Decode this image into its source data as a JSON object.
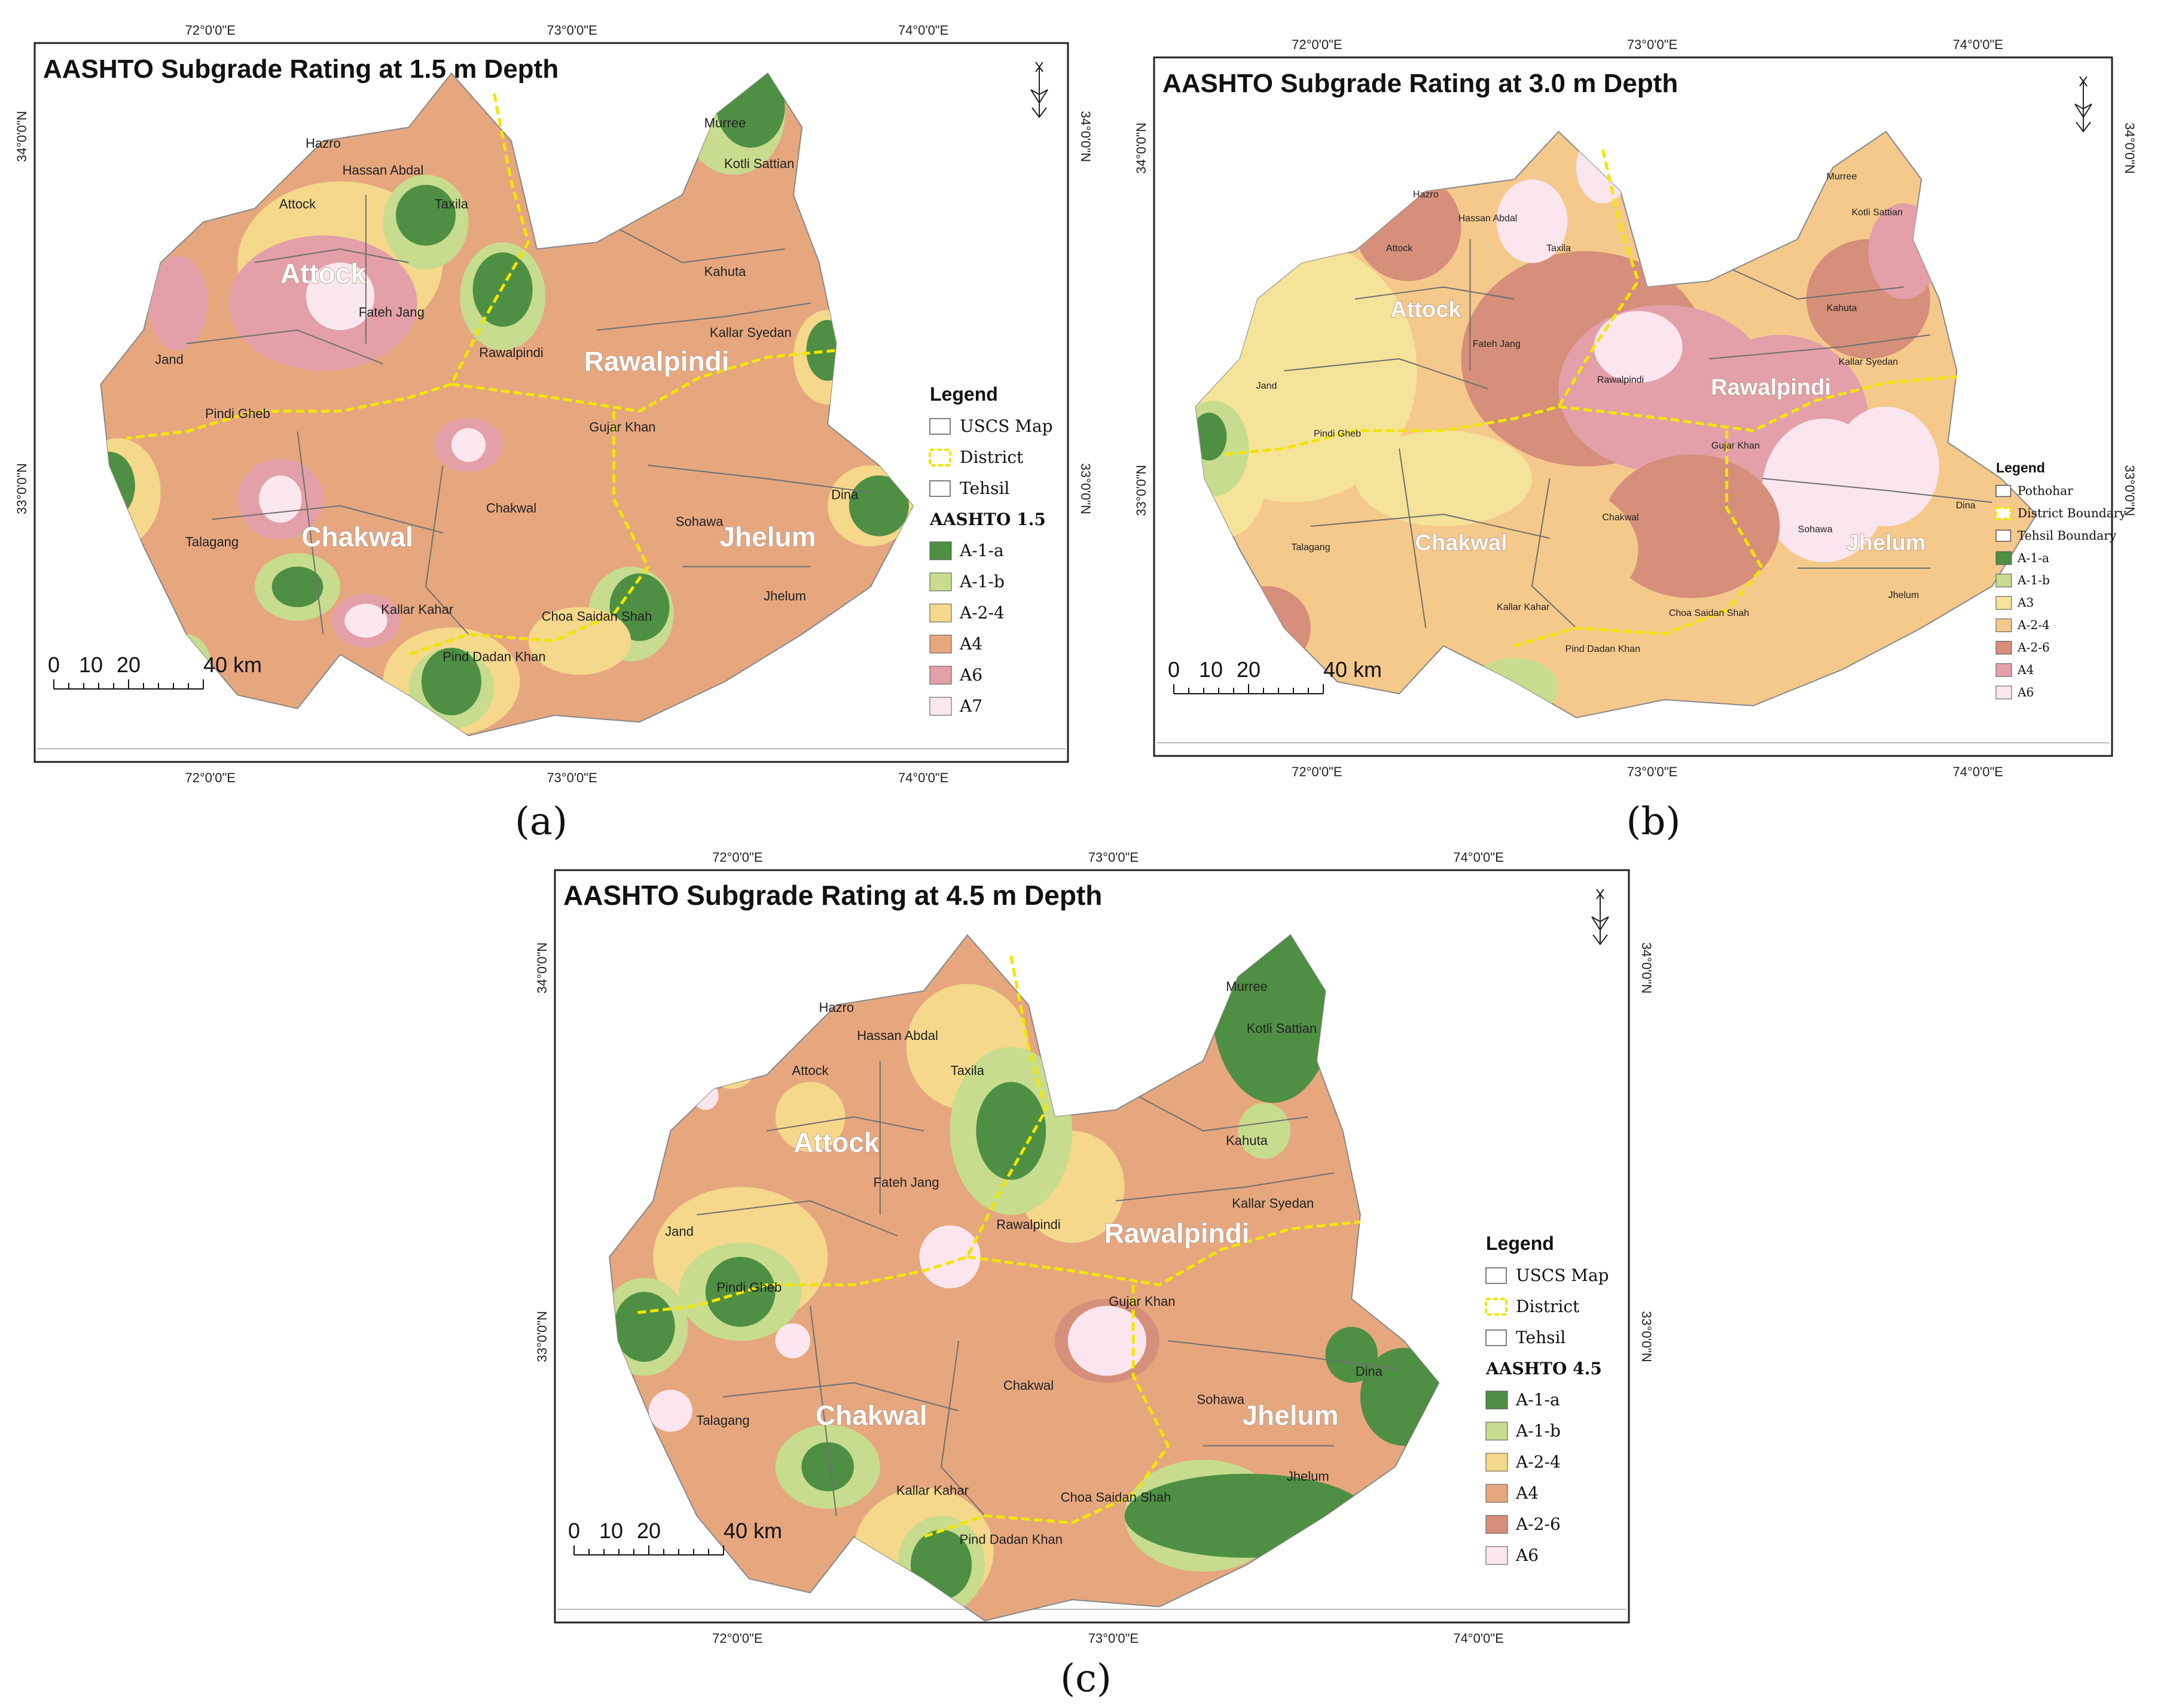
{
  "colors": {
    "A-1-a": "#4e8f43",
    "A-1-b": "#c7dc8e",
    "A-2-4": "#f5d88b",
    "A4": "#e6a77f",
    "A-2-6": "#d58f7a",
    "A6": "#e3a0a8",
    "A7": "#fbe8ef",
    "A6-light": "#fbe5ee"
  },
  "panels": [
    {
      "id": "a",
      "title": "AASHTO Subgrade Rating at 1.5 m Depth",
      "label": "(a)",
      "coords_top": [
        "72°0'0\"E",
        "73°0'0\"E",
        "74°0'0\"E"
      ],
      "coords_bottom": [
        "72°0'0\"E",
        "73°0'0\"E",
        "74°0'0\"E"
      ],
      "coords_left": [
        "34°0'0\"N",
        "33°0'0\"N"
      ],
      "coords_right": [
        "34°0'0\"N",
        "33°0'0\"N"
      ],
      "districts": [
        "Attock",
        "Rawalpindi",
        "Chakwal",
        "Jhelum"
      ],
      "tehsils": [
        "Hazro",
        "Hassan Abdal",
        "Taxila",
        "Murree",
        "Kotli Sattian",
        "Attock",
        "Kahuta",
        "Fateh Jang",
        "Jand",
        "Kallar Syedan",
        "Rawalpindi",
        "Pindi Gheb",
        "Gujar Khan",
        "Dina",
        "Chakwal",
        "Sohawa",
        "Talagang",
        "Jhelum",
        "Kallar Kahar",
        "Choa Saidan Shah",
        "Pind Dadan Khan"
      ],
      "legend": {
        "title": "Legend",
        "lines": [
          "USCS Map",
          "District",
          "Tehsil"
        ],
        "subtitle": "AASHTO 1.5",
        "classes": [
          {
            "label": "A-1-a",
            "color": "#4e8f43"
          },
          {
            "label": "A-1-b",
            "color": "#c7dc8e"
          },
          {
            "label": "A-2-4",
            "color": "#f5d88b"
          },
          {
            "label": "A4",
            "color": "#e6a77f"
          },
          {
            "label": "A6",
            "color": "#e3a0a8"
          },
          {
            "label": "A7",
            "color": "#fbe8ef"
          }
        ]
      },
      "scale": {
        "ticks": [
          "0",
          "10",
          "20",
          "40 km"
        ]
      }
    },
    {
      "id": "b",
      "title": "AASHTO Subgrade Rating at 3.0 m Depth",
      "label": "(b)",
      "coords_top": [
        "72°0'0\"E",
        "73°0'0\"E",
        "74°0'0\"E"
      ],
      "coords_bottom": [
        "72°0'0\"E",
        "73°0'0\"E",
        "74°0'0\"E"
      ],
      "coords_left": [
        "34°0'0\"N",
        "33°0'0\"N"
      ],
      "coords_right": [
        "34°0'0\"N",
        "33°0'0\"N"
      ],
      "districts": [
        "Attock",
        "Rawalpindi",
        "Chakwal",
        "Jhelum"
      ],
      "tehsils": [
        "Hazro",
        "Hassan Abdal",
        "Taxila",
        "Murree",
        "Kotli Sattian",
        "Attock",
        "Kahuta",
        "Fateh Jang",
        "Jand",
        "Kallar Syedan",
        "Rawalpindi",
        "Pindi Gheb",
        "Gujar Khan",
        "Dina",
        "Chakwal",
        "Sohawa",
        "Talagang",
        "Jhelum",
        "Kallar Kahar",
        "Choa Saidan Shah",
        "Pind Dadan Khan"
      ],
      "legend": {
        "title": "Legend",
        "lines": [
          "Pothohar",
          "District Boundary",
          "Tehsil Boundary"
        ],
        "subtitle": "",
        "classes": [
          {
            "label": "A-1-a",
            "color": "#4e8f43"
          },
          {
            "label": "A-1-b",
            "color": "#c7dc8e"
          },
          {
            "label": "A3",
            "color": "#f5e39a"
          },
          {
            "label": "A-2-4",
            "color": "#f5c98b"
          },
          {
            "label": "A-2-6",
            "color": "#d58f7a"
          },
          {
            "label": "A4",
            "color": "#e3a0a8"
          },
          {
            "label": "A6",
            "color": "#fbe5ee"
          }
        ]
      },
      "scale": {
        "ticks": [
          "0",
          "10",
          "20",
          "40 km"
        ]
      }
    },
    {
      "id": "c",
      "title": "AASHTO Subgrade Rating at 4.5 m Depth",
      "label": "(c)",
      "coords_top": [
        "72°0'0\"E",
        "73°0'0\"E",
        "74°0'0\"E"
      ],
      "coords_bottom": [
        "72°0'0\"E",
        "73°0'0\"E",
        "74°0'0\"E"
      ],
      "coords_left": [
        "34°0'0\"N",
        "33°0'0\"N"
      ],
      "coords_right": [
        "34°0'0\"N",
        "33°0'0\"N"
      ],
      "districts": [
        "Attock",
        "Rawalpindi",
        "Chakwal",
        "Jhelum"
      ],
      "tehsils": [
        "Hazro",
        "Hassan Abdal",
        "Taxila",
        "Murree",
        "Kotli Sattian",
        "Attock",
        "Kahuta",
        "Fateh Jang",
        "Jand",
        "Kallar Syedan",
        "Rawalpindi",
        "Pindi Gheb",
        "Gujar Khan",
        "Dina",
        "Chakwal",
        "Sohawa",
        "Talagang",
        "Jhelum",
        "Kallar Kahar",
        "Choa Saidan Shah",
        "Pind Dadan Khan"
      ],
      "legend": {
        "title": "Legend",
        "lines": [
          "USCS Map",
          "District",
          "Tehsil"
        ],
        "subtitle": "AASHTO 4.5",
        "classes": [
          {
            "label": "A-1-a",
            "color": "#4e8f43"
          },
          {
            "label": "A-1-b",
            "color": "#c7dc8e"
          },
          {
            "label": "A-2-4",
            "color": "#f5d88b"
          },
          {
            "label": "A4",
            "color": "#e6a77f"
          },
          {
            "label": "A-2-6",
            "color": "#d58f7a"
          },
          {
            "label": "A6",
            "color": "#fbe5ee"
          }
        ]
      },
      "scale": {
        "ticks": [
          "0",
          "10",
          "20",
          "40 km"
        ]
      }
    }
  ],
  "icons": [
    "north-arrow-icon"
  ]
}
